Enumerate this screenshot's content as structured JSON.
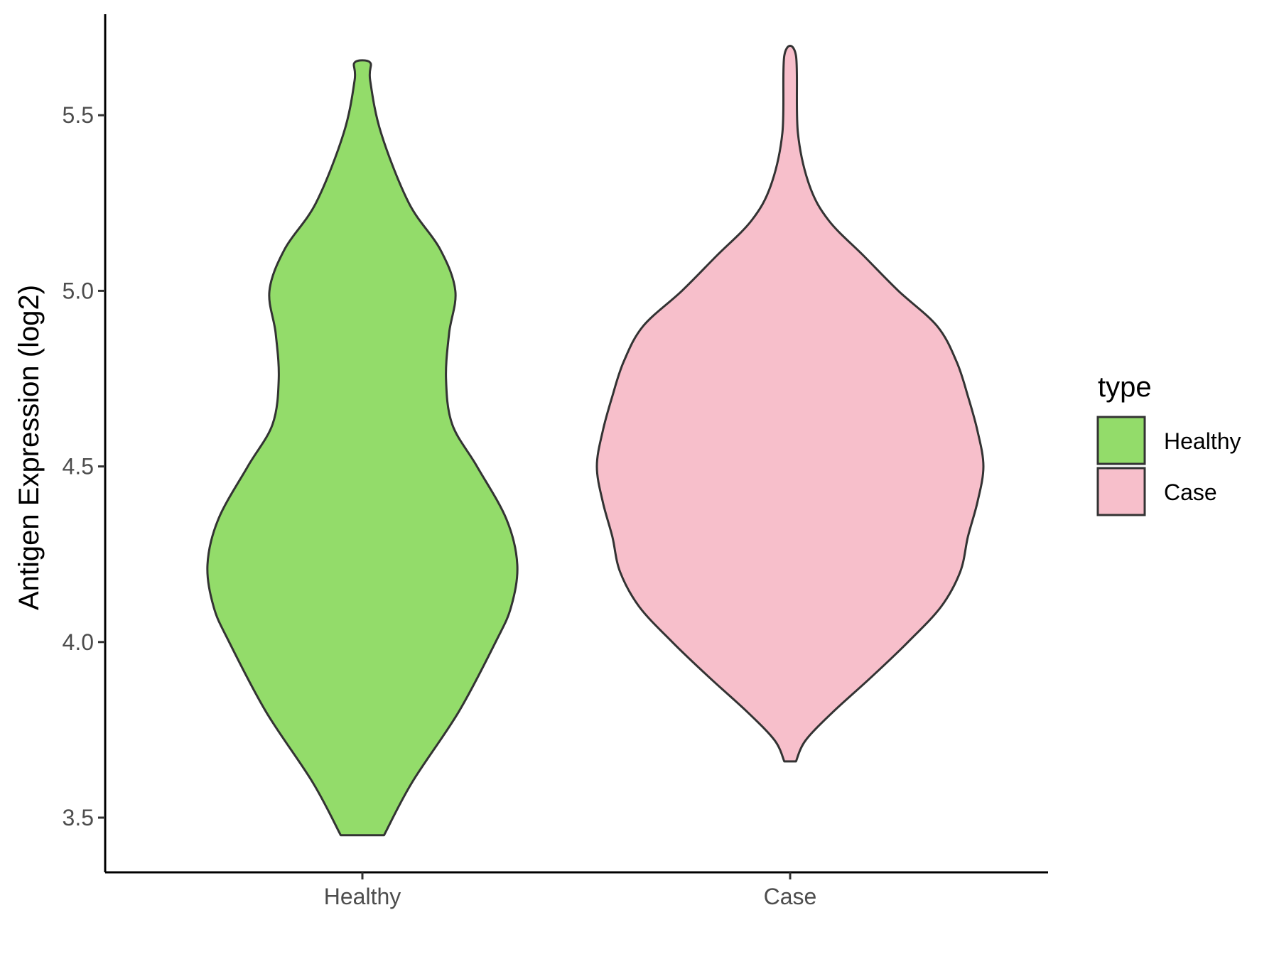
{
  "chart_data": {
    "type": "violin",
    "title": "",
    "xlabel": "",
    "ylabel": "Antigen Expression (log2)",
    "ylim": [
      3.35,
      5.78
    ],
    "yticks": [
      "3.5",
      "4.0",
      "4.5",
      "5.0",
      "5.5"
    ],
    "categories": [
      "Healthy",
      "Case"
    ],
    "legend": {
      "title": "type",
      "position": "right",
      "entries": [
        "Healthy",
        "Case"
      ]
    },
    "colors": {
      "Healthy": "#93dc6a",
      "Case": "#f7bfcb",
      "outline": "#333333"
    },
    "series": [
      {
        "name": "Healthy",
        "min": 3.45,
        "max": 5.65,
        "density_profile": [
          [
            3.45,
            0.14
          ],
          [
            3.6,
            0.32
          ],
          [
            3.8,
            0.62
          ],
          [
            4.0,
            0.86
          ],
          [
            4.1,
            0.96
          ],
          [
            4.22,
            1.0
          ],
          [
            4.35,
            0.93
          ],
          [
            4.5,
            0.74
          ],
          [
            4.62,
            0.58
          ],
          [
            4.75,
            0.54
          ],
          [
            4.88,
            0.56
          ],
          [
            5.0,
            0.6
          ],
          [
            5.12,
            0.5
          ],
          [
            5.25,
            0.3
          ],
          [
            5.45,
            0.12
          ],
          [
            5.6,
            0.05
          ],
          [
            5.65,
            0.05
          ]
        ]
      },
      {
        "name": "Case",
        "min": 3.66,
        "max": 5.67,
        "density_profile": [
          [
            3.66,
            0.03
          ],
          [
            3.72,
            0.08
          ],
          [
            3.8,
            0.22
          ],
          [
            3.9,
            0.42
          ],
          [
            4.0,
            0.61
          ],
          [
            4.1,
            0.78
          ],
          [
            4.2,
            0.88
          ],
          [
            4.3,
            0.92
          ],
          [
            4.4,
            0.97
          ],
          [
            4.5,
            1.0
          ],
          [
            4.6,
            0.97
          ],
          [
            4.7,
            0.92
          ],
          [
            4.8,
            0.86
          ],
          [
            4.9,
            0.76
          ],
          [
            5.0,
            0.56
          ],
          [
            5.1,
            0.38
          ],
          [
            5.2,
            0.2
          ],
          [
            5.3,
            0.1
          ],
          [
            5.45,
            0.04
          ],
          [
            5.67,
            0.03
          ]
        ]
      }
    ]
  }
}
